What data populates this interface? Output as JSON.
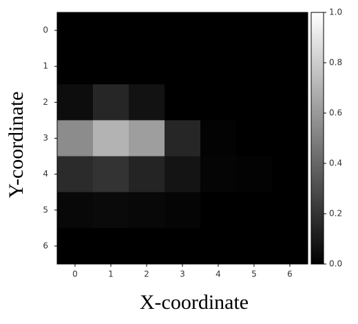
{
  "chart_data": {
    "type": "heatmap",
    "x_label": "X-coordinate",
    "y_label": "Y-coordinate",
    "xlim": [
      -0.5,
      6.5
    ],
    "ylim": [
      6.5,
      -0.5
    ],
    "xticks": [
      0,
      1,
      2,
      3,
      4,
      5,
      6
    ],
    "yticks": [
      0,
      1,
      2,
      3,
      4,
      5,
      6
    ],
    "colormap": "gray",
    "clim": [
      0,
      1
    ],
    "cticks": [
      {
        "value": 0,
        "label": "0.0"
      },
      0.2,
      0.4,
      0.6,
      0.8,
      {
        "value": 1,
        "label": "1.0"
      }
    ],
    "z": [
      [
        0,
        0,
        0,
        0,
        0,
        0,
        0
      ],
      [
        0,
        0,
        0,
        0,
        0,
        0,
        0
      ],
      [
        0.05,
        0.15,
        0.07,
        0,
        0,
        0,
        0
      ],
      [
        0.55,
        0.7,
        0.62,
        0.15,
        0.01,
        0,
        0
      ],
      [
        0.17,
        0.2,
        0.14,
        0.08,
        0.02,
        0.01,
        0
      ],
      [
        0.03,
        0.04,
        0.03,
        0.02,
        0,
        0,
        0
      ],
      [
        0,
        0,
        0,
        0,
        0,
        0,
        0
      ]
    ]
  }
}
